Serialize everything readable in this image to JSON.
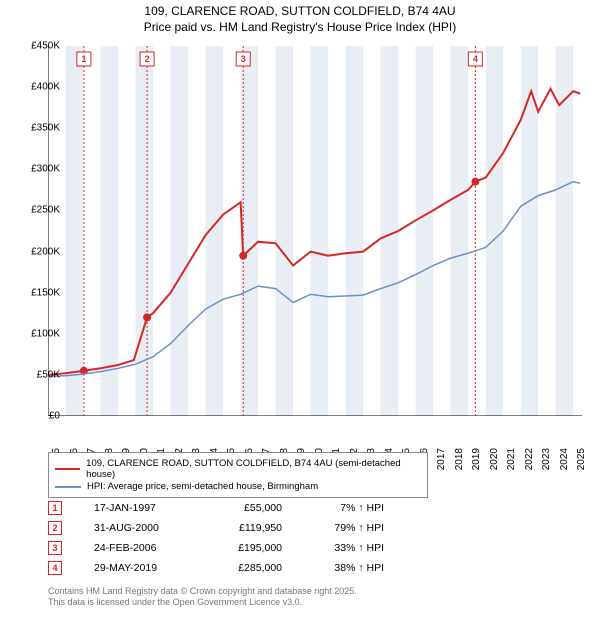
{
  "title_line1": "109, CLARENCE ROAD, SUTTON COLDFIELD, B74 4AU",
  "title_line2": "Price paid vs. HM Land Registry's House Price Index (HPI)",
  "chart": {
    "type": "line",
    "background_color": "#ffffff",
    "band_color": "#e9eef4",
    "x_min_year": 1995,
    "x_max_year": 2025.5,
    "ylim": [
      0,
      450000
    ],
    "ytick_step": 50000,
    "yticks": [
      "£0",
      "£50K",
      "£100K",
      "£150K",
      "£200K",
      "£250K",
      "£300K",
      "£350K",
      "£400K",
      "£450K"
    ],
    "xticks": [
      "1995",
      "1996",
      "1997",
      "1998",
      "1999",
      "2000",
      "2001",
      "2002",
      "2003",
      "2004",
      "2005",
      "2006",
      "2007",
      "2008",
      "2009",
      "2010",
      "2011",
      "2012",
      "2013",
      "2014",
      "2015",
      "2016",
      "2017",
      "2018",
      "2019",
      "2020",
      "2021",
      "2022",
      "2023",
      "2024",
      "2025"
    ],
    "series_red": {
      "color": "#d62728",
      "width": 2,
      "label": "109, CLARENCE ROAD, SUTTON COLDFIELD, B74 4AU (semi-detached house)",
      "points": [
        [
          1995.0,
          50000
        ],
        [
          1996.0,
          52000
        ],
        [
          1997.05,
          55000
        ],
        [
          1998.0,
          58000
        ],
        [
          1999.0,
          62000
        ],
        [
          1999.9,
          68000
        ],
        [
          2000.66,
          119950
        ],
        [
          2001.0,
          125000
        ],
        [
          2002.0,
          150000
        ],
        [
          2003.0,
          185000
        ],
        [
          2004.0,
          220000
        ],
        [
          2005.0,
          245000
        ],
        [
          2006.0,
          260000
        ],
        [
          2006.15,
          195000
        ],
        [
          2007.0,
          212000
        ],
        [
          2008.0,
          210000
        ],
        [
          2009.0,
          183000
        ],
        [
          2010.0,
          200000
        ],
        [
          2011.0,
          195000
        ],
        [
          2012.0,
          198000
        ],
        [
          2013.0,
          200000
        ],
        [
          2014.0,
          216000
        ],
        [
          2015.0,
          225000
        ],
        [
          2016.0,
          238000
        ],
        [
          2017.0,
          250000
        ],
        [
          2018.0,
          263000
        ],
        [
          2019.0,
          275000
        ],
        [
          2019.41,
          285000
        ],
        [
          2020.0,
          290000
        ],
        [
          2021.0,
          320000
        ],
        [
          2022.0,
          360000
        ],
        [
          2022.6,
          395000
        ],
        [
          2023.0,
          370000
        ],
        [
          2023.7,
          398000
        ],
        [
          2024.2,
          378000
        ],
        [
          2025.0,
          395000
        ],
        [
          2025.4,
          392000
        ]
      ]
    },
    "series_blue": {
      "color": "#6b8fc8",
      "width": 1.5,
      "label": "HPI: Average price, semi-detached house, Birmingham",
      "points": [
        [
          1995.0,
          48000
        ],
        [
          1996.0,
          49000
        ],
        [
          1997.0,
          51000
        ],
        [
          1998.0,
          54000
        ],
        [
          1999.0,
          58000
        ],
        [
          2000.0,
          63000
        ],
        [
          2001.0,
          72000
        ],
        [
          2002.0,
          88000
        ],
        [
          2003.0,
          110000
        ],
        [
          2004.0,
          130000
        ],
        [
          2005.0,
          142000
        ],
        [
          2006.0,
          148000
        ],
        [
          2007.0,
          158000
        ],
        [
          2008.0,
          155000
        ],
        [
          2009.0,
          138000
        ],
        [
          2010.0,
          148000
        ],
        [
          2011.0,
          145000
        ],
        [
          2012.0,
          146000
        ],
        [
          2013.0,
          147000
        ],
        [
          2014.0,
          155000
        ],
        [
          2015.0,
          162000
        ],
        [
          2016.0,
          172000
        ],
        [
          2017.0,
          183000
        ],
        [
          2018.0,
          192000
        ],
        [
          2019.0,
          198000
        ],
        [
          2020.0,
          205000
        ],
        [
          2021.0,
          225000
        ],
        [
          2022.0,
          255000
        ],
        [
          2023.0,
          268000
        ],
        [
          2024.0,
          275000
        ],
        [
          2025.0,
          285000
        ],
        [
          2025.4,
          283000
        ]
      ]
    },
    "sales": [
      {
        "n": "1",
        "year": 1997.05,
        "value": 55000
      },
      {
        "n": "2",
        "year": 2000.66,
        "value": 119950
      },
      {
        "n": "3",
        "year": 2006.15,
        "value": 195000
      },
      {
        "n": "4",
        "year": 2019.41,
        "value": 285000
      }
    ]
  },
  "legend": {
    "items": [
      {
        "color": "#d62728",
        "label": "109, CLARENCE ROAD, SUTTON COLDFIELD, B74 4AU (semi-detached house)"
      },
      {
        "color": "#6b8fc8",
        "label": "HPI: Average price, semi-detached house, Birmingham"
      }
    ]
  },
  "sales_table": [
    {
      "n": "1",
      "date": "17-JAN-1997",
      "price": "£55,000",
      "pct": "7% ↑ HPI"
    },
    {
      "n": "2",
      "date": "31-AUG-2000",
      "price": "£119,950",
      "pct": "79% ↑ HPI"
    },
    {
      "n": "3",
      "date": "24-FEB-2006",
      "price": "£195,000",
      "pct": "33% ↑ HPI"
    },
    {
      "n": "4",
      "date": "29-MAY-2019",
      "price": "£285,000",
      "pct": "38% ↑ HPI"
    }
  ],
  "footer_line1": "Contains HM Land Registry data © Crown copyright and database right 2025.",
  "footer_line2": "This data is licensed under the Open Government Licence v3.0."
}
